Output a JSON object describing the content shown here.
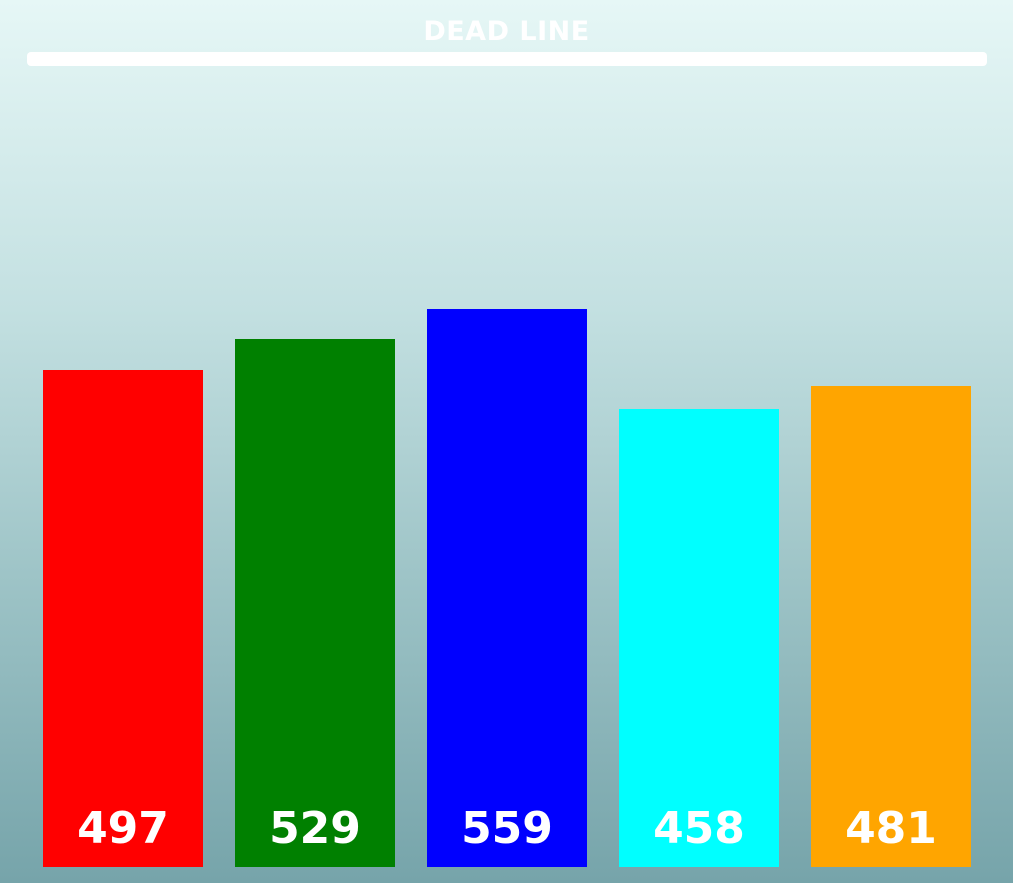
{
  "game": {
    "deadline_label": "DEAD LINE"
  },
  "chart_data": {
    "type": "bar",
    "values": [
      497,
      529,
      559,
      458,
      481
    ],
    "colors": [
      "#ff0000",
      "#008000",
      "#0000ff",
      "#00ffff",
      "#ffa500"
    ]
  }
}
